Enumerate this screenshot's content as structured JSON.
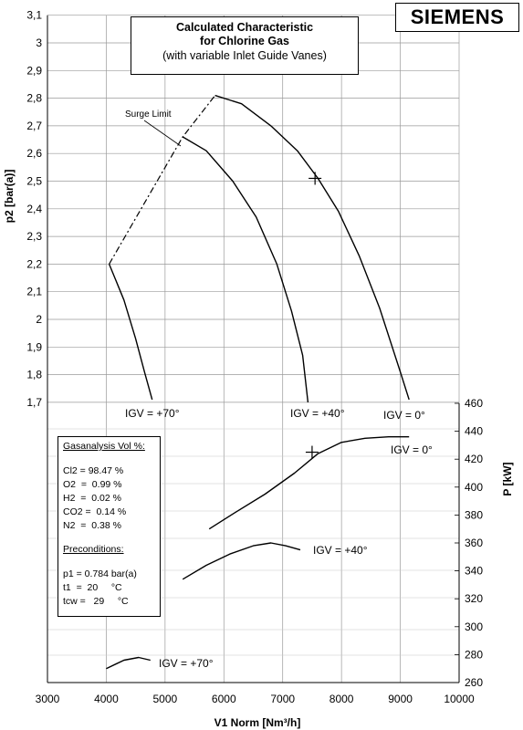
{
  "logo": "SIEMENS",
  "title": {
    "line1": "Calculated Characteristic",
    "line2": "for Chlorine Gas",
    "line3": "(with variable Inlet Guide Vanes)"
  },
  "gas_box": {
    "heading": "Gasanalysis Vol %:",
    "items": [
      "Cl2 = 98.47 %",
      "O2  =  0.99 %",
      "H2  =  0.02 %",
      "CO2 =  0.14 %",
      "N2  =  0.38 %"
    ],
    "pre_heading": "Preconditions:",
    "pre_items": [
      "p1 = 0.784 bar(a)",
      "t1  =  20     °C",
      "tcw =   29     °C"
    ]
  },
  "chart_data": {
    "type": "line",
    "xlabel": "V1 Norm [Nm³/h]",
    "ylabel_left": "p2 [bar(a)]",
    "ylabel_right": "P [kW]",
    "xlim": [
      3000,
      10000
    ],
    "x_ticks": [
      3000,
      4000,
      5000,
      6000,
      7000,
      8000,
      9000,
      10000
    ],
    "x_tick_labels": [
      "3000",
      "4000",
      "5000",
      "6000",
      "7000",
      "8000",
      "9000",
      "10000"
    ],
    "y_left_ticks": [
      1.7,
      1.8,
      1.9,
      2.0,
      2.1,
      2.2,
      2.3,
      2.4,
      2.5,
      2.6,
      2.7,
      2.8,
      2.9,
      3.0,
      3.1
    ],
    "y_left_tick_labels": [
      "1,7",
      "1,8",
      "1,9",
      "2",
      "2,1",
      "2,2",
      "2,3",
      "2,4",
      "2,5",
      "2,6",
      "2,7",
      "2,8",
      "2,9",
      "3",
      "3,1"
    ],
    "y_right_ticks": [
      260,
      280,
      300,
      320,
      340,
      360,
      380,
      400,
      420,
      440,
      460
    ],
    "y_right_tick_labels": [
      "260",
      "280",
      "300",
      "320",
      "340",
      "360",
      "380",
      "400",
      "420",
      "440",
      "460"
    ],
    "grid": true,
    "pressure_series": [
      {
        "name": "IGV = +70°",
        "x": [
          4050,
          4300,
          4500,
          4650,
          4780
        ],
        "y": [
          2.2,
          2.07,
          1.93,
          1.81,
          1.71
        ]
      },
      {
        "name": "IGV = +40°",
        "x": [
          5300,
          5700,
          6150,
          6550,
          6900,
          7150,
          7340,
          7430
        ],
        "y": [
          2.66,
          2.61,
          2.5,
          2.37,
          2.2,
          2.03,
          1.87,
          1.7
        ]
      },
      {
        "name": "IGV = 0°",
        "x": [
          5850,
          6300,
          6800,
          7250,
          7600,
          7950,
          8300,
          8650,
          9000,
          9150
        ],
        "y": [
          2.81,
          2.78,
          2.7,
          2.61,
          2.51,
          2.39,
          2.23,
          2.04,
          1.81,
          1.71
        ]
      }
    ],
    "surge_limit": {
      "label": "Surge Limit",
      "x": [
        4050,
        5300,
        5850
      ],
      "y": [
        2.2,
        2.66,
        2.81
      ]
    },
    "power_series": [
      {
        "name": "IGV = 0°",
        "x": [
          5750,
          6200,
          6700,
          7200,
          7600,
          8000,
          8400,
          8800,
          9150
        ],
        "y": [
          370,
          382,
          395,
          410,
          424,
          432,
          435,
          436,
          436
        ]
      },
      {
        "name": "IGV = +40°",
        "x": [
          5300,
          5700,
          6100,
          6500,
          6800,
          7050,
          7300
        ],
        "y": [
          334,
          344,
          352,
          358,
          360,
          358,
          355
        ]
      },
      {
        "name": "IGV = +70°",
        "x": [
          4000,
          4300,
          4550,
          4750
        ],
        "y": [
          270,
          276,
          278,
          276
        ]
      }
    ],
    "markers": [
      {
        "axis": "left",
        "x": 7550,
        "y": 2.51
      },
      {
        "axis": "right",
        "x": 7500,
        "y": 425
      }
    ],
    "pressure_labels": [
      "IGV = +70°",
      "IGV = +40°",
      "IGV = 0°"
    ],
    "power_labels": [
      "IGV = 0°",
      "IGV = +40°",
      "IGV = +70°"
    ]
  }
}
